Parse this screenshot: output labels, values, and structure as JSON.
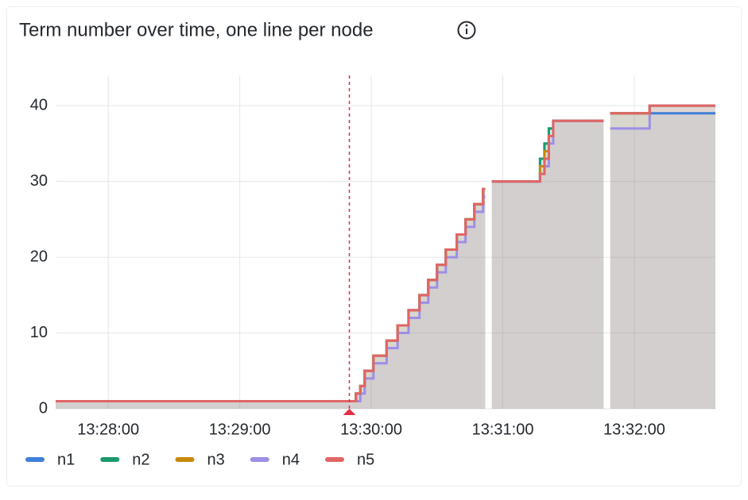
{
  "chart_data": {
    "type": "line",
    "step": "after",
    "title": "Term number over time, one line per node",
    "x": [
      "13:27:36",
      "13:29:53",
      "13:29:55",
      "13:29:57",
      "13:30:01",
      "13:30:07",
      "13:30:12",
      "13:30:17",
      "13:30:22",
      "13:30:26",
      "13:30:30",
      "13:30:34",
      "13:30:39",
      "13:30:43",
      "13:30:47",
      "13:30:51",
      "13:30:52",
      "13:30:55",
      "13:31:17",
      "13:31:19",
      "13:31:21",
      "13:31:23",
      "13:31:46",
      "13:31:49",
      "13:32:07",
      "13:32:37"
    ],
    "series": [
      {
        "name": "n1",
        "color": "#3f80d8",
        "values": [
          1,
          2,
          3,
          5,
          7,
          9,
          11,
          13,
          15,
          17,
          19,
          21,
          23,
          25,
          27,
          29,
          null,
          30,
          33,
          35,
          37,
          38,
          null,
          39,
          39,
          39
        ]
      },
      {
        "name": "n2",
        "color": "#1c9a6c",
        "values": [
          1,
          2,
          3,
          5,
          7,
          9,
          11,
          13,
          15,
          17,
          19,
          21,
          23,
          25,
          27,
          29,
          null,
          30,
          33,
          35,
          37,
          38,
          null,
          39,
          40,
          40
        ]
      },
      {
        "name": "n3",
        "color": "#c8890d",
        "values": [
          1,
          2,
          3,
          5,
          7,
          9,
          11,
          13,
          15,
          17,
          19,
          21,
          23,
          25,
          27,
          29,
          null,
          30,
          32,
          34,
          36,
          38,
          null,
          39,
          40,
          40
        ]
      },
      {
        "name": "n4",
        "color": "#9c8fe6",
        "values": [
          1,
          1,
          2,
          4,
          6,
          8,
          10,
          12,
          14,
          16,
          18,
          20,
          22,
          24,
          26,
          28,
          null,
          30,
          31,
          32,
          35,
          38,
          null,
          37,
          40,
          40
        ]
      },
      {
        "name": "n5",
        "color": "#e06666",
        "values": [
          1,
          2,
          3,
          5,
          7,
          9,
          11,
          13,
          15,
          17,
          19,
          21,
          23,
          25,
          27,
          29,
          null,
          30,
          31,
          33,
          36,
          38,
          null,
          39,
          40,
          40
        ]
      }
    ],
    "xlim": [
      "13:27:36",
      "13:32:37"
    ],
    "xticks": [
      "13:28:00",
      "13:29:00",
      "13:30:00",
      "13:31:00",
      "13:32:00"
    ],
    "ylim": [
      0,
      44
    ],
    "yticks": [
      0,
      10,
      20,
      30,
      40
    ],
    "annotation_x": "13:29:50",
    "grid": true,
    "fill": true,
    "legend": "bottom-left"
  }
}
